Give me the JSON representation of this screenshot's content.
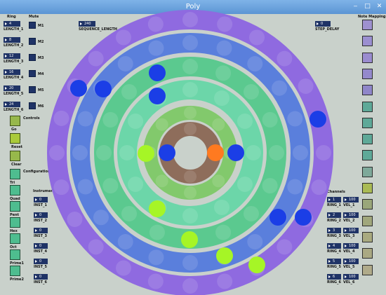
{
  "window": {
    "title": "Poly"
  },
  "headers": {
    "ring": "Ring",
    "mute": "Mute",
    "note_mapping": "Note Mapping",
    "controls": "Controls",
    "configurations": "Configurations",
    "instrument": "Instrument",
    "channels": "Channels"
  },
  "rings": [
    {
      "value": "4",
      "label": "LENGTH_1",
      "mute": "M1"
    },
    {
      "value": "8",
      "label": "LENGTH_2",
      "mute": "M2"
    },
    {
      "value": "12",
      "label": "LENGTH_3",
      "mute": "M3"
    },
    {
      "value": "16",
      "label": "LENGTH_4",
      "mute": "M4"
    },
    {
      "value": "20",
      "label": "LENGTH_5",
      "mute": "M5"
    },
    {
      "value": "24",
      "label": "LENGTH_6",
      "mute": "M6"
    }
  ],
  "sequence": {
    "value": "240",
    "label": "SEQUENCE_LENGTH"
  },
  "step_delay": {
    "value": "0",
    "label": "STEP_DELAY"
  },
  "controls": [
    {
      "label": "Go"
    },
    {
      "label": "Reset"
    },
    {
      "label": "Clear"
    }
  ],
  "configs": [
    {
      "label": "Tri"
    },
    {
      "label": "Quad"
    },
    {
      "label": "Pent"
    },
    {
      "label": "Hex"
    },
    {
      "label": "Oct"
    },
    {
      "label": "Prime1"
    },
    {
      "label": "Prime2"
    }
  ],
  "instruments": [
    {
      "value": "0",
      "label": "INST_1"
    },
    {
      "value": "0",
      "label": "INST_2"
    },
    {
      "value": "0",
      "label": "INST_3"
    },
    {
      "value": "0",
      "label": "INST_4"
    },
    {
      "value": "0",
      "label": "INST_5"
    },
    {
      "value": "0",
      "label": "INST_6"
    }
  ],
  "channels": [
    {
      "ring_value": "1",
      "ring_label": "RING_1",
      "vel_value": "100",
      "vel_label": "VEL_1"
    },
    {
      "ring_value": "2",
      "ring_label": "RING_2",
      "vel_value": "100",
      "vel_label": "VEL_2"
    },
    {
      "ring_value": "3",
      "ring_label": "RING_3",
      "vel_value": "100",
      "vel_label": "VEL_3"
    },
    {
      "ring_value": "4",
      "ring_label": "RING_4",
      "vel_value": "100",
      "vel_label": "VEL_4"
    },
    {
      "ring_value": "5",
      "ring_label": "RING_5",
      "vel_value": "100",
      "vel_label": "VEL_5"
    },
    {
      "ring_value": "6",
      "ring_label": "RING_6",
      "vel_value": "100",
      "vel_label": "VEL_6"
    }
  ],
  "note_colors": [
    "#9e91cf",
    "#9b8fd0",
    "#9a8ccf",
    "#9489cc",
    "#8f86c9",
    "#5ea998",
    "#5ea998",
    "#5ea998",
    "#5ea998",
    "#7ea99a",
    "#aabb55",
    "#9aa77a",
    "#a0a77c",
    "#a9aa7f",
    "#aaa983",
    "#b0ab8a"
  ],
  "ring_colors": [
    "#8e6d5b",
    "#82c96c",
    "#6cd6a9",
    "#5bc98f",
    "#5a7fdc",
    "#8f6ae0"
  ]
}
